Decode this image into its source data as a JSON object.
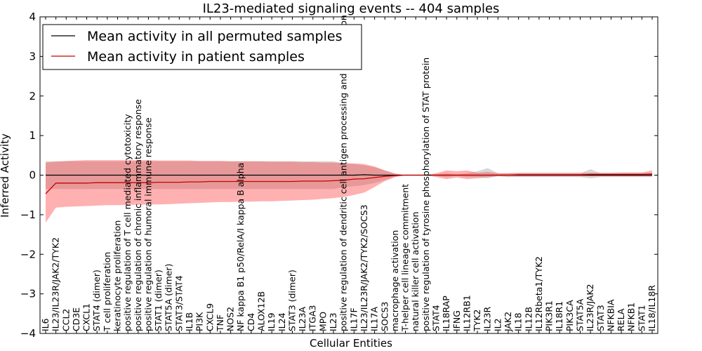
{
  "chart_data": {
    "type": "line",
    "title": "IL23-mediated signaling events -- 404 samples",
    "xlabel": "Cellular Entities",
    "ylabel": "Inferred Activity",
    "ylim": [
      -4,
      4
    ],
    "yticks": [
      "4",
      "3",
      "2",
      "1",
      "0",
      "−1",
      "−2",
      "−3",
      "−4"
    ],
    "grid": false,
    "legend_position": "top-left",
    "categories": [
      "IL6",
      "IL23/IL23R/JAK2/TYK2",
      "CCL2",
      "CD3E",
      "CXCL1",
      "STAT4 (dimer)",
      "T cell proliferation",
      "keratinocyte proliferation",
      "positive regulation of T cell mediated cytotoxicity",
      "positive regulation of chronic inflammatory response",
      "positive regulation of humoral immune response",
      "STAT1 (dimer)",
      "STAT5A (dimer)",
      "STAT3/STAT4",
      "IL1B",
      "PI3K",
      "CXCL9",
      "TNF",
      "NOS2",
      "NF kappa B1 p50/RelA/I kappa B alpha",
      "CD4",
      "ALOX12B",
      "IL19",
      "IL24",
      "STAT3 (dimer)",
      "IL23A",
      "ITGA3",
      "MPO",
      "IL23",
      "positive regulation of dendritic cell antigen processing and presentation",
      "IL17F",
      "IL23/IL23R/JAK2/TYK2/SOCS3",
      "IL17A",
      "SOCS3",
      "macrophage activation",
      "T-helper cell lineage commitment",
      "natural killer cell activation",
      "positive regulation of tyrosine phosphorylation of STAT protein",
      "STAT4",
      "IL18RAP",
      "IFNG",
      "IL12RB1",
      "TYK2",
      "IL23R",
      "IL2",
      "JAK2",
      "IL18",
      "IL12B",
      "IL12Rbeta1/TYK2",
      "PIK3R1",
      "IL18R1",
      "PIK3CA",
      "STAT5A",
      "IL23R/JAK2",
      "STAT3",
      "NFKBIA",
      "RELA",
      "NFKB1",
      "STAT1",
      "IL18/IL18R"
    ],
    "series": [
      {
        "name": "Mean activity in all permuted samples",
        "color": "#000000",
        "values": [
          0.0,
          0.0,
          0.0,
          0.0,
          0.0,
          0.0,
          0.0,
          0.0,
          0.0,
          0.0,
          0.0,
          0.0,
          0.0,
          0.0,
          0.0,
          0.0,
          0.0,
          0.0,
          0.0,
          0.0,
          0.0,
          0.0,
          0.0,
          0.0,
          0.0,
          0.0,
          0.0,
          0.0,
          0.0,
          0.0,
          0.0,
          0.01,
          0.0,
          0.0,
          0.0,
          0.0,
          0.0,
          0.0,
          0.0,
          0.0,
          0.0,
          0.0,
          0.0,
          0.0,
          0.0,
          0.0,
          0.0,
          0.0,
          0.0,
          0.0,
          0.0,
          0.0,
          0.0,
          0.0,
          0.0,
          0.0,
          0.0,
          0.0,
          0.0,
          0.0
        ],
        "band_low": [
          -0.35,
          -0.35,
          -0.35,
          -0.35,
          -0.35,
          -0.35,
          -0.35,
          -0.35,
          -0.35,
          -0.35,
          -0.35,
          -0.35,
          -0.35,
          -0.35,
          -0.35,
          -0.35,
          -0.35,
          -0.35,
          -0.35,
          -0.35,
          -0.35,
          -0.35,
          -0.35,
          -0.35,
          -0.35,
          -0.35,
          -0.35,
          -0.35,
          -0.35,
          -0.3,
          -0.28,
          -0.25,
          -0.2,
          -0.12,
          -0.04,
          0.0,
          0.0,
          0.0,
          -0.02,
          -0.05,
          -0.02,
          -0.05,
          -0.05,
          -0.08,
          -0.02,
          -0.05,
          -0.05,
          -0.05,
          -0.05,
          -0.05,
          -0.05,
          -0.05,
          -0.05,
          -0.08,
          -0.05,
          -0.05,
          -0.05,
          -0.05,
          -0.05,
          -0.05
        ],
        "band_high": [
          0.35,
          0.35,
          0.35,
          0.35,
          0.35,
          0.35,
          0.35,
          0.35,
          0.35,
          0.35,
          0.35,
          0.35,
          0.35,
          0.35,
          0.35,
          0.35,
          0.35,
          0.35,
          0.35,
          0.35,
          0.35,
          0.35,
          0.35,
          0.35,
          0.35,
          0.35,
          0.35,
          0.35,
          0.35,
          0.3,
          0.28,
          0.25,
          0.2,
          0.12,
          0.04,
          0.0,
          0.0,
          0.0,
          0.02,
          0.05,
          0.02,
          0.05,
          0.1,
          0.18,
          0.05,
          0.05,
          0.05,
          0.05,
          0.05,
          0.05,
          0.05,
          0.05,
          0.05,
          0.15,
          0.05,
          0.05,
          0.05,
          0.05,
          0.05,
          0.05
        ]
      },
      {
        "name": "Mean activity in patient samples",
        "color": "#cc0000",
        "values": [
          -0.47,
          -0.2,
          -0.2,
          -0.2,
          -0.2,
          -0.19,
          -0.19,
          -0.19,
          -0.19,
          -0.19,
          -0.19,
          -0.18,
          -0.18,
          -0.18,
          -0.17,
          -0.17,
          -0.16,
          -0.16,
          -0.16,
          -0.16,
          -0.16,
          -0.16,
          -0.16,
          -0.16,
          -0.16,
          -0.15,
          -0.15,
          -0.15,
          -0.14,
          -0.13,
          -0.1,
          -0.09,
          -0.06,
          -0.03,
          -0.01,
          0.0,
          0.0,
          0.0,
          0.0,
          0.0,
          0.0,
          0.0,
          0.0,
          0.0,
          0.0,
          0.0,
          0.01,
          0.01,
          0.01,
          0.01,
          0.01,
          0.01,
          0.01,
          0.02,
          0.02,
          0.02,
          0.02,
          0.02,
          0.02,
          0.03
        ],
        "band_low": [
          -1.2,
          -0.82,
          -0.8,
          -0.79,
          -0.78,
          -0.77,
          -0.76,
          -0.76,
          -0.75,
          -0.75,
          -0.74,
          -0.74,
          -0.73,
          -0.72,
          -0.71,
          -0.7,
          -0.69,
          -0.68,
          -0.68,
          -0.67,
          -0.67,
          -0.66,
          -0.66,
          -0.65,
          -0.64,
          -0.63,
          -0.62,
          -0.6,
          -0.58,
          -0.55,
          -0.5,
          -0.44,
          -0.3,
          -0.15,
          -0.05,
          0.0,
          0.0,
          0.0,
          -0.05,
          -0.1,
          -0.06,
          -0.1,
          -0.08,
          -0.05,
          -0.03,
          -0.03,
          -0.03,
          -0.03,
          -0.03,
          -0.03,
          -0.03,
          -0.03,
          -0.03,
          -0.03,
          -0.03,
          -0.03,
          -0.03,
          -0.03,
          -0.03,
          -0.03
        ],
        "band_high": [
          0.32,
          0.34,
          0.36,
          0.37,
          0.38,
          0.38,
          0.38,
          0.38,
          0.38,
          0.38,
          0.38,
          0.37,
          0.37,
          0.37,
          0.37,
          0.36,
          0.36,
          0.36,
          0.35,
          0.35,
          0.35,
          0.35,
          0.34,
          0.34,
          0.34,
          0.33,
          0.33,
          0.32,
          0.32,
          0.3,
          0.3,
          0.28,
          0.22,
          0.12,
          0.04,
          0.0,
          0.0,
          0.0,
          0.05,
          0.12,
          0.1,
          0.12,
          0.06,
          0.08,
          0.05,
          0.05,
          0.06,
          0.06,
          0.06,
          0.06,
          0.06,
          0.06,
          0.06,
          0.06,
          0.06,
          0.06,
          0.07,
          0.07,
          0.07,
          0.12
        ]
      }
    ]
  }
}
